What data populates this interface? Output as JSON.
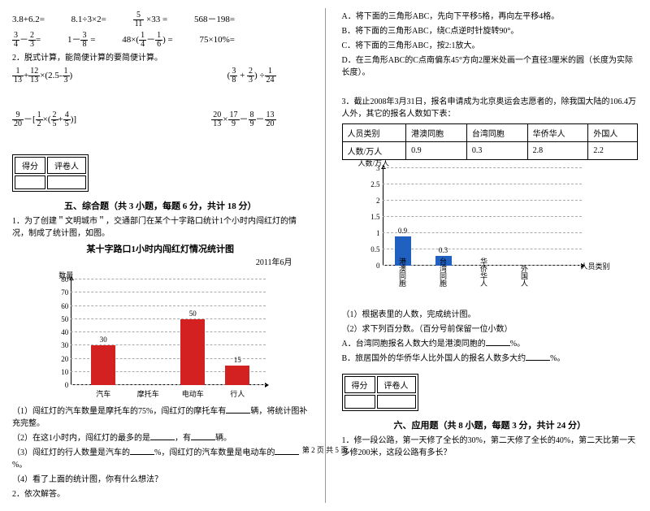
{
  "left": {
    "row1": {
      "a": "3.8+6.2=",
      "b": "8.1÷3×2=",
      "c_frac_n": "5",
      "c_frac_d": "11",
      "c_rest": "×33 =",
      "d": "568－198="
    },
    "row2": {
      "a1n": "3",
      "a1d": "4",
      "a_mid": "－",
      "a2n": "2",
      "a2d": "3",
      "a_eq": "=",
      "b_pre": "1－",
      "b1n": "3",
      "b1d": "8",
      "b_eq": " =",
      "c_pre": "48×(",
      "c1n": "1",
      "c1d": "4",
      "c_mid": "－",
      "c2n": "1",
      "c2d": "6",
      "c_post": ") =",
      "d": "75×10%="
    },
    "q2_title": "2．脱式计算，能简便计算的要简便计算。",
    "expr1": {
      "a1n": "1",
      "a1d": "13",
      "mid": "+",
      "a2n": "12",
      "a2d": "13",
      "m2": "×(",
      "b1": "2.5",
      "m3": "-",
      "b2n": "1",
      "b2d": "3",
      "end": ")"
    },
    "expr2": {
      "pre": "(",
      "a1n": "3",
      "a1d": "8",
      "mid": " + ",
      "a2n": "2",
      "a2d": "3",
      "post": ") ÷",
      "b1n": "1",
      "b1d": "24"
    },
    "expr3": {
      "a1n": "9",
      "a1d": "20",
      "m1": "－[",
      "b1n": "1",
      "b1d": "2",
      "m2": "×(",
      "c1n": "2",
      "c1d": "5",
      "m3": "+",
      "c2n": "4",
      "c2d": "5",
      "end": ")]"
    },
    "expr4": {
      "a1n": "20",
      "a1d": "13",
      "m1": "×",
      "a2n": "17",
      "a2d": "9",
      "m2": "－",
      "a3n": "8",
      "a3d": "9",
      "m3": "－",
      "a4n": "13",
      "a4d": "20"
    },
    "score_label1": "得分",
    "score_label2": "评卷人",
    "sec5": "五、综合题（共 3 小题，每题 6 分，共计 18 分）",
    "q5_1": "1．为了创建＂文明城市＂，交通部门在某个十字路口统计1个小时内闯红灯的情况，制成了统计图，如图。",
    "chart1": {
      "title": "某十字路口1小时内闯红灯情况统计图",
      "subtitle": "2011年6月",
      "ylabel": "数量",
      "ymax": 80,
      "ystep": 10,
      "categories": [
        "汽车",
        "摩托车",
        "电动车",
        "行人"
      ],
      "values": [
        30,
        null,
        50,
        15
      ],
      "value_labels": [
        "30",
        "",
        "50",
        "15"
      ],
      "bar_color": "#d32020",
      "grid_color": "#aaaaaa"
    },
    "q5_1_1": "（1）闯红灯的汽车数量是摩托车的75%，闯红灯的摩托车有",
    "q5_1_1b": "辆，将统计图补充完整。",
    "q5_1_2": "（2）在这1小时内，闯红灯的最多的是",
    "q5_1_2b": "，有",
    "q5_1_2c": "辆。",
    "q5_1_3a": "（3）闯红灯的行人数量是汽车的",
    "q5_1_3b": "%，闯红灯的汽车数量是电动车的",
    "q5_1_3c": "%。",
    "q5_1_4": "（4）看了上面的统计图，你有什么想法？",
    "q5_2": "2．依次解答。"
  },
  "right": {
    "opts": {
      "a": "A．将下面的三角形ABC，先向下平移5格，再向左平移4格。",
      "b": "B．将下面的三角形ABC，绕C点逆时针旋转90°。",
      "c": "C．将下面的三角形ABC，按2:1放大。",
      "d": "D．在三角形ABC的C点南偏东45°方向2厘米处画一个直径3厘米的圆（长度为实际长度）。"
    },
    "q3": "3．截止2008年3月31日，报名申请成为北京奥运会志愿者的，除我国大陆的106.4万人外，其它的报名人数如下表：",
    "table": {
      "headers": [
        "人员类别",
        "港澳同胞",
        "台湾同胞",
        "华侨华人",
        "外国人"
      ],
      "row_label": "人数/万人",
      "values": [
        "0.9",
        "0.3",
        "2.8",
        "2.2"
      ]
    },
    "chart2": {
      "ylabel": "人数/万人",
      "xlabel": "人员类别",
      "ymax": 3,
      "ystep": 0.5,
      "categories": [
        "港澳同胞",
        "台湾同胞",
        "华侨华人",
        "外国人"
      ],
      "values": [
        0.9,
        0.3,
        null,
        null
      ],
      "value_labels": [
        "0.9",
        "0.3",
        "",
        ""
      ],
      "bar_color": "#2060c0",
      "grid_color": "#aaaaaa"
    },
    "q3_1": "（1）根据表里的人数，完成统计图。",
    "q3_2": "（2）求下列百分数。（百分号前保留一位小数）",
    "q3_a": "A．台湾同胞报名人数大约是港澳同胞的",
    "q3_a2": "%。",
    "q3_b": "B．旅居国外的华侨华人比外国人的报名人数多大约",
    "q3_b2": "%。",
    "score_label1": "得分",
    "score_label2": "评卷人",
    "sec6": "六、应用题（共 8 小题，每题 3 分，共计 24 分）",
    "q6_1": "1．修一段公路，第一天修了全长的30%，第二天修了全长的40%，第二天比第一天多修200米，这段公路有多长？"
  },
  "footer": "第 2 页 共 5 页"
}
